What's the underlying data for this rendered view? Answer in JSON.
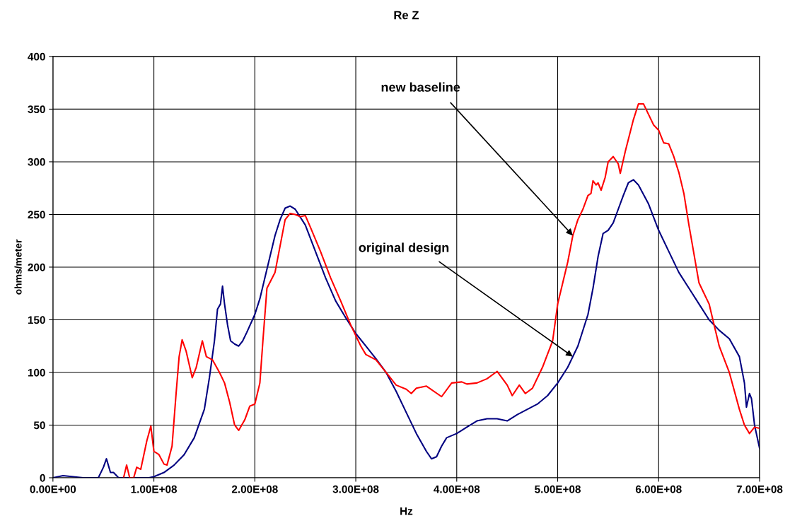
{
  "chart_data": {
    "type": "line",
    "title": "Re Z",
    "xlabel": "Hz",
    "ylabel": "ohms/meter",
    "xlim": [
      0,
      700000000.0
    ],
    "ylim": [
      0,
      400
    ],
    "xticks": [
      {
        "value": 0,
        "label": "0.00E+00"
      },
      {
        "value": 100000000.0,
        "label": "1.00E+08"
      },
      {
        "value": 200000000.0,
        "label": "2.00E+08"
      },
      {
        "value": 300000000.0,
        "label": "3.00E+08"
      },
      {
        "value": 400000000.0,
        "label": "4.00E+08"
      },
      {
        "value": 500000000.0,
        "label": "5.00E+08"
      },
      {
        "value": 600000000.0,
        "label": "6.00E+08"
      },
      {
        "value": 700000000.0,
        "label": "7.00E+08"
      }
    ],
    "yticks": [
      0,
      50,
      100,
      150,
      200,
      250,
      300,
      350,
      400
    ],
    "grid": true,
    "marker": "none",
    "line_style": "solid",
    "series": [
      {
        "color": "#000080",
        "x": [
          0,
          10000000.0,
          30000000.0,
          45000000.0,
          50000000.0,
          53000000.0,
          57000000.0,
          60000000.0,
          65000000.0,
          95000000.0,
          100000000.0,
          110000000.0,
          120000000.0,
          130000000.0,
          140000000.0,
          150000000.0,
          155000000.0,
          160000000.0,
          163000000.0,
          166000000.0,
          168000000.0,
          170000000.0,
          173000000.0,
          176000000.0,
          180000000.0,
          184000000.0,
          188000000.0,
          192000000.0,
          200000000.0,
          205000000.0,
          210000000.0,
          215000000.0,
          220000000.0,
          225000000.0,
          230000000.0,
          235000000.0,
          240000000.0,
          250000000.0,
          260000000.0,
          270000000.0,
          280000000.0,
          290000000.0,
          300000000.0,
          310000000.0,
          320000000.0,
          330000000.0,
          340000000.0,
          350000000.0,
          360000000.0,
          370000000.0,
          375000000.0,
          380000000.0,
          385000000.0,
          390000000.0,
          400000000.0,
          410000000.0,
          420000000.0,
          430000000.0,
          440000000.0,
          450000000.0,
          460000000.0,
          470000000.0,
          480000000.0,
          490000000.0,
          500000000.0,
          510000000.0,
          520000000.0,
          530000000.0,
          535000000.0,
          540000000.0,
          545000000.0,
          550000000.0,
          555000000.0,
          560000000.0,
          565000000.0,
          570000000.0,
          575000000.0,
          580000000.0,
          590000000.0,
          600000000.0,
          610000000.0,
          620000000.0,
          630000000.0,
          640000000.0,
          650000000.0,
          660000000.0,
          670000000.0,
          680000000.0,
          685000000.0,
          687000000.0,
          690000000.0,
          692000000.0,
          695000000.0,
          700000000.0
        ],
        "values": [
          0,
          2,
          0,
          0,
          10,
          18,
          5,
          5,
          0,
          0,
          1,
          5,
          12,
          22,
          38,
          65,
          95,
          130,
          160,
          165,
          182,
          165,
          145,
          130,
          127,
          125,
          130,
          138,
          155,
          170,
          190,
          210,
          230,
          245,
          256,
          258,
          255,
          240,
          215,
          190,
          168,
          152,
          137,
          125,
          113,
          100,
          82,
          62,
          42,
          25,
          18,
          20,
          30,
          38,
          42,
          48,
          54,
          56,
          56,
          54,
          60,
          65,
          70,
          78,
          90,
          105,
          125,
          155,
          180,
          210,
          232,
          235,
          242,
          255,
          268,
          280,
          283,
          278,
          260,
          235,
          215,
          195,
          180,
          165,
          150,
          140,
          132,
          115,
          90,
          67,
          80,
          75,
          50,
          28
        ]
      },
      {
        "color": "#ff0000",
        "x": [
          70000000.0,
          73000000.0,
          76000000.0,
          80000000.0,
          83000000.0,
          87000000.0,
          93000000.0,
          97000000.0,
          100000000.0,
          105000000.0,
          110000000.0,
          113000000.0,
          118000000.0,
          122000000.0,
          125000000.0,
          128000000.0,
          132000000.0,
          138000000.0,
          142000000.0,
          148000000.0,
          152000000.0,
          158000000.0,
          165000000.0,
          170000000.0,
          175000000.0,
          180000000.0,
          184000000.0,
          190000000.0,
          195000000.0,
          200000000.0,
          205000000.0,
          208000000.0,
          212000000.0,
          220000000.0,
          225000000.0,
          230000000.0,
          235000000.0,
          240000000.0,
          245000000.0,
          250000000.0,
          255000000.0,
          265000000.0,
          275000000.0,
          285000000.0,
          295000000.0,
          300000000.0,
          305000000.0,
          310000000.0,
          320000000.0,
          330000000.0,
          340000000.0,
          350000000.0,
          355000000.0,
          360000000.0,
          370000000.0,
          385000000.0,
          395000000.0,
          405000000.0,
          410000000.0,
          420000000.0,
          430000000.0,
          440000000.0,
          450000000.0,
          455000000.0,
          462000000.0,
          468000000.0,
          475000000.0,
          485000000.0,
          495000000.0,
          500000000.0,
          505000000.0,
          510000000.0,
          515000000.0,
          520000000.0,
          525000000.0,
          530000000.0,
          533000000.0,
          535000000.0,
          538000000.0,
          540000000.0,
          543000000.0,
          547000000.0,
          550000000.0,
          555000000.0,
          560000000.0,
          562000000.0,
          567000000.0,
          575000000.0,
          580000000.0,
          585000000.0,
          590000000.0,
          595000000.0,
          600000000.0,
          605000000.0,
          610000000.0,
          615000000.0,
          620000000.0,
          625000000.0,
          630000000.0,
          640000000.0,
          645000000.0,
          650000000.0,
          655000000.0,
          660000000.0,
          670000000.0,
          680000000.0,
          685000000.0,
          690000000.0,
          695000000.0,
          700000000.0
        ],
        "values": [
          0,
          12,
          0,
          0,
          10,
          8,
          35,
          49,
          25,
          22,
          13,
          12,
          30,
          80,
          115,
          131,
          120,
          95,
          105,
          130,
          115,
          112,
          100,
          90,
          72,
          50,
          45,
          55,
          68,
          70,
          90,
          130,
          180,
          195,
          220,
          245,
          251,
          250,
          248,
          249,
          238,
          215,
          190,
          168,
          145,
          135,
          125,
          117,
          112,
          100,
          88,
          84,
          80,
          85,
          87,
          77,
          90,
          91,
          89,
          90,
          94,
          101,
          88,
          78,
          88,
          80,
          85,
          105,
          130,
          165,
          185,
          205,
          230,
          245,
          255,
          268,
          270,
          282,
          278,
          280,
          273,
          285,
          300,
          305,
          298,
          289,
          310,
          340,
          355,
          355,
          345,
          335,
          330,
          318,
          317,
          305,
          290,
          270,
          240,
          185,
          175,
          165,
          145,
          125,
          100,
          65,
          50,
          42,
          48,
          47
        ]
      }
    ],
    "annotations": [
      {
        "text": "new baseline",
        "x": 515000000.0,
        "y": 230
      },
      {
        "text": "original design",
        "x": 515000000.0,
        "y": 115
      }
    ]
  }
}
